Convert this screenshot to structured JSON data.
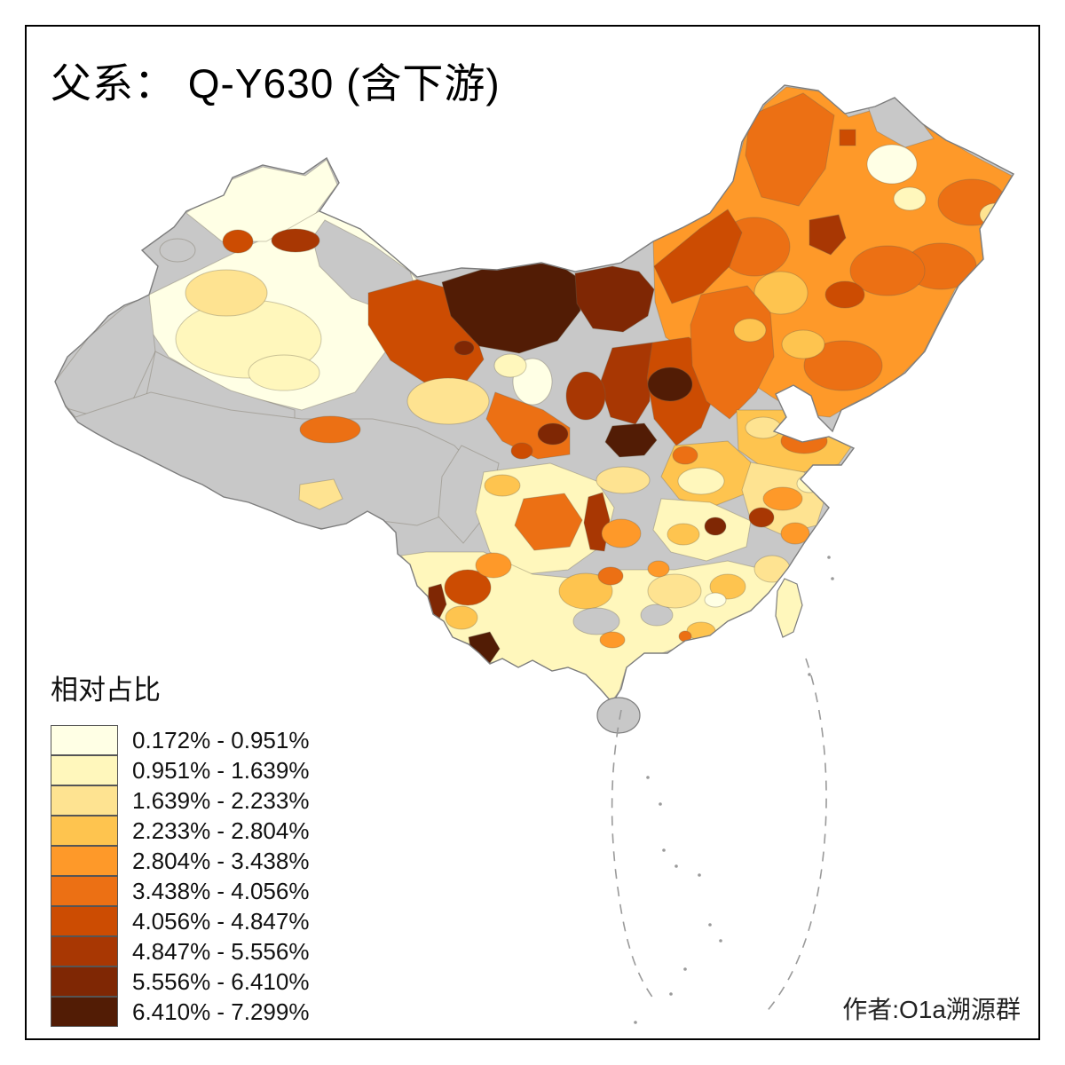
{
  "title": "父系： Q-Y630 (含下游)",
  "legend": {
    "title": "相对占比",
    "items": [
      {
        "label": "0.172% - 0.951%",
        "color": "#FFFFE5"
      },
      {
        "label": "0.951% - 1.639%",
        "color": "#FFF7BC"
      },
      {
        "label": "1.639% - 2.233%",
        "color": "#FEE391"
      },
      {
        "label": "2.233% - 2.804%",
        "color": "#FEC44F"
      },
      {
        "label": "2.804% - 3.438%",
        "color": "#FE9929"
      },
      {
        "label": "3.438% - 4.056%",
        "color": "#EC7014"
      },
      {
        "label": "4.056% - 4.847%",
        "color": "#CC4C02"
      },
      {
        "label": "4.847% - 5.556%",
        "color": "#A83703"
      },
      {
        "label": "5.556% - 6.410%",
        "color": "#7F2704"
      },
      {
        "label": "6.410% - 7.299%",
        "color": "#521C05"
      }
    ]
  },
  "attribution": "作者:O1a溯源群",
  "map": {
    "no_data_color": "#C8C8C8",
    "boundary_color": "#7d7d7d",
    "inner_border_color": "rgba(110,100,80,0.35)",
    "sea_dash_color": "#9a9a9a",
    "background": "#FFFFFF"
  },
  "chart_data": {
    "type": "choropleth",
    "title": "父系： Q-Y630 (含下游)",
    "legend_title": "相对占比",
    "unit": "%",
    "class_breaks": [
      0.172,
      0.951,
      1.639,
      2.233,
      2.804,
      3.438,
      4.056,
      4.847,
      5.556,
      6.41,
      7.299
    ],
    "class_labels": [
      "0.172% - 0.951%",
      "0.951% - 1.639%",
      "1.639% - 2.233%",
      "2.233% - 2.804%",
      "2.804% - 3.438%",
      "3.438% - 4.056%",
      "4.056% - 4.847%",
      "4.847% - 5.556%",
      "5.556% - 6.410%",
      "6.410% - 7.299%"
    ],
    "palette": [
      "#FFFFE5",
      "#FFF7BC",
      "#FEE391",
      "#FEC44F",
      "#FE9929",
      "#EC7014",
      "#CC4C02",
      "#A83703",
      "#7F2704",
      "#521C05"
    ],
    "no_data_color": "#C8C8C8",
    "legend_position": "bottom-left",
    "geography": "China, prefecture-level divisions",
    "pattern_notes": "Highest values (dark brown, 5.5-7.3%) along north-central border band (western Inner Mongolia / northern Gansu / northern Shaanxi-Shanxi); moderate orange (2.8-4%) across Northeast and North China; low cream-yellow values (<2.2%) across the south and Xinjiang; gray = no data (Tibet, western areas, scattered south)."
  }
}
